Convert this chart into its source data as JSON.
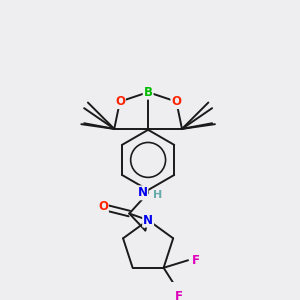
{
  "background_color": "#eeeef0",
  "bond_color": "#1a1a1a",
  "bond_width": 1.4,
  "figsize": [
    3.0,
    3.0
  ],
  "dpi": 100,
  "colors": {
    "B": "#00bb00",
    "O": "#ff2200",
    "N": "#0000ee",
    "H": "#66aaaa",
    "F": "#dd00bb"
  }
}
